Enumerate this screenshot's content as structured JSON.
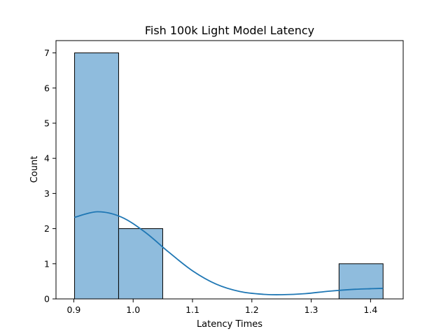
{
  "chart_data": {
    "type": "bar",
    "title": "Fish 100k Light Model Latency",
    "xlabel": "Latency Times",
    "ylabel": "Count",
    "xlim": [
      0.87,
      1.455
    ],
    "ylim": [
      0,
      7.35
    ],
    "xticks": [
      "0.9",
      "1.0",
      "1.1",
      "1.2",
      "1.3",
      "1.4"
    ],
    "yticks": [
      "0",
      "1",
      "2",
      "3",
      "4",
      "5",
      "6",
      "7"
    ],
    "grid": false,
    "bins": [
      {
        "start": 0.9013,
        "end": 0.9755,
        "count": 7
      },
      {
        "start": 0.9755,
        "end": 1.0498,
        "count": 2
      },
      {
        "start": 1.0498,
        "end": 1.1241,
        "count": 0
      },
      {
        "start": 1.1241,
        "end": 1.1983,
        "count": 0
      },
      {
        "start": 1.1983,
        "end": 1.2726,
        "count": 0
      },
      {
        "start": 1.2726,
        "end": 1.3469,
        "count": 0
      },
      {
        "start": 1.3469,
        "end": 1.4211,
        "count": 1
      }
    ],
    "kde": {
      "x": [
        0.901,
        0.94,
        0.98,
        1.02,
        1.06,
        1.1,
        1.14,
        1.18,
        1.22,
        1.25,
        1.29,
        1.33,
        1.37,
        1.4,
        1.421
      ],
      "y": [
        2.32,
        2.48,
        2.33,
        1.9,
        1.33,
        0.8,
        0.42,
        0.21,
        0.13,
        0.12,
        0.15,
        0.22,
        0.27,
        0.29,
        0.3
      ]
    },
    "colors": {
      "bar_fill": "#8fbcdd",
      "bar_edge": "#000000",
      "kde_line": "#1f77b4"
    }
  }
}
